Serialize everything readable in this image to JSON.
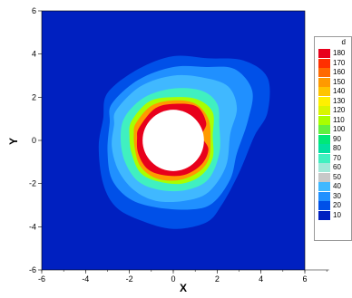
{
  "chart_data": {
    "type": "heatmap",
    "title": "",
    "xlabel": "X",
    "ylabel": "Y",
    "xlim": [
      -6,
      6
    ],
    "ylim": [
      -6,
      6
    ],
    "x_ticks": [
      "-6",
      "-4",
      "-2",
      "0",
      "2",
      "4",
      "6"
    ],
    "y_ticks": [
      "6",
      "4",
      "2",
      "0",
      "-2",
      "-4",
      "-6"
    ],
    "legend": {
      "title": "d",
      "levels": [
        {
          "label": "180",
          "color": "#e8001c"
        },
        {
          "label": "170",
          "color": "#ff3000"
        },
        {
          "label": "160",
          "color": "#ff6a00"
        },
        {
          "label": "150",
          "color": "#ff9a00"
        },
        {
          "label": "140",
          "color": "#ffc400"
        },
        {
          "label": "130",
          "color": "#fff000"
        },
        {
          "label": "120",
          "color": "#d8f500"
        },
        {
          "label": "110",
          "color": "#a8ff00"
        },
        {
          "label": "100",
          "color": "#60f040"
        },
        {
          "label": "90",
          "color": "#00e878"
        },
        {
          "label": "80",
          "color": "#00e0a0"
        },
        {
          "label": "70",
          "color": "#40f0c0"
        },
        {
          "label": "60",
          "color": "#a0e8d8"
        },
        {
          "label": "50",
          "color": "#c8c8c8"
        },
        {
          "label": "40",
          "color": "#40b8ff"
        },
        {
          "label": "30",
          "color": "#2090ff"
        },
        {
          "label": "20",
          "color": "#0050e8"
        },
        {
          "label": "10",
          "color": "#0020c0"
        }
      ]
    },
    "background_value": 10,
    "hole": {
      "center": [
        0,
        0
      ],
      "radius": 1.4
    },
    "contours": [
      {
        "value": 20,
        "color": "#0050e8",
        "points": [
          [
            -3.0,
            2.2
          ],
          [
            -1.6,
            3.3
          ],
          [
            0,
            3.9
          ],
          [
            1.6,
            3.8
          ],
          [
            3.2,
            3.7
          ],
          [
            4.3,
            2.9
          ],
          [
            4.3,
            1.3
          ],
          [
            3.7,
            0.2
          ],
          [
            3.0,
            -1.5
          ],
          [
            2.2,
            -3.0
          ],
          [
            1.5,
            -3.8
          ],
          [
            0,
            -4.1
          ],
          [
            -1.5,
            -3.7
          ],
          [
            -2.6,
            -3.1
          ],
          [
            -3.2,
            -2.0
          ],
          [
            -3.4,
            -0.3
          ],
          [
            -3.2,
            1.0
          ]
        ]
      },
      {
        "value": 30,
        "color": "#2090ff",
        "points": [
          [
            -2.8,
            1.7
          ],
          [
            -1.6,
            2.8
          ],
          [
            0,
            3.4
          ],
          [
            1.5,
            3.4
          ],
          [
            2.8,
            3.3
          ],
          [
            3.6,
            2.3
          ],
          [
            3.4,
            0.9
          ],
          [
            2.9,
            -0.6
          ],
          [
            2.6,
            -1.8
          ],
          [
            1.8,
            -2.9
          ],
          [
            0.8,
            -3.2
          ],
          [
            -0.8,
            -3.1
          ],
          [
            -2.0,
            -2.7
          ],
          [
            -2.8,
            -1.8
          ],
          [
            -3.0,
            -0.5
          ],
          [
            -2.9,
            0.8
          ]
        ]
      },
      {
        "value": 40,
        "color": "#40b8ff",
        "points": [
          [
            -2.6,
            1.4
          ],
          [
            -1.5,
            2.5
          ],
          [
            0,
            3.0
          ],
          [
            1.4,
            2.9
          ],
          [
            2.5,
            2.5
          ],
          [
            2.9,
            1.5
          ],
          [
            2.6,
            0.3
          ],
          [
            2.4,
            -1.2
          ],
          [
            1.6,
            -2.4
          ],
          [
            0.5,
            -2.8
          ],
          [
            -0.8,
            -2.8
          ],
          [
            -1.8,
            -2.3
          ],
          [
            -2.5,
            -1.4
          ],
          [
            -2.8,
            -0.3
          ],
          [
            -2.7,
            0.7
          ]
        ]
      },
      {
        "value": 70,
        "color": "#40f0c0",
        "points": [
          [
            -2.2,
            1.1
          ],
          [
            -1.3,
            2.0
          ],
          [
            0,
            2.4
          ],
          [
            1.3,
            2.3
          ],
          [
            2.0,
            1.7
          ],
          [
            2.1,
            0.7
          ],
          [
            2.1,
            -0.6
          ],
          [
            1.6,
            -1.8
          ],
          [
            0.6,
            -2.3
          ],
          [
            -0.6,
            -2.3
          ],
          [
            -1.6,
            -1.9
          ],
          [
            -2.2,
            -1.0
          ],
          [
            -2.4,
            0.1
          ]
        ]
      },
      {
        "value": 110,
        "color": "#a8ff00",
        "points": [
          [
            -1.9,
            0.9
          ],
          [
            -1.1,
            1.8
          ],
          [
            0,
            2.0
          ],
          [
            1.1,
            1.9
          ],
          [
            1.8,
            1.3
          ],
          [
            1.8,
            0.2
          ],
          [
            1.8,
            -0.8
          ],
          [
            1.3,
            -1.6
          ],
          [
            0.4,
            -2.0
          ],
          [
            -0.7,
            -1.9
          ],
          [
            -1.5,
            -1.5
          ],
          [
            -1.9,
            -0.6
          ],
          [
            -2.0,
            0.2
          ]
        ]
      },
      {
        "value": 150,
        "color": "#ff9a00",
        "points": [
          [
            -1.7,
            0.8
          ],
          [
            -1.0,
            1.6
          ],
          [
            0,
            1.85
          ],
          [
            1.0,
            1.7
          ],
          [
            1.6,
            1.0
          ],
          [
            1.7,
            0.0
          ],
          [
            1.6,
            -0.9
          ],
          [
            1.1,
            -1.5
          ],
          [
            0.2,
            -1.85
          ],
          [
            -0.8,
            -1.75
          ],
          [
            -1.5,
            -1.2
          ],
          [
            -1.75,
            -0.4
          ],
          [
            -1.8,
            0.3
          ]
        ]
      },
      {
        "value": 180,
        "color": "#e8001c",
        "points": [
          [
            -1.55,
            0.6
          ],
          [
            -0.8,
            1.5
          ],
          [
            0.2,
            1.7
          ],
          [
            1.1,
            1.55
          ],
          [
            1.5,
            0.8
          ],
          [
            1.3,
            0.2
          ],
          [
            1.6,
            -0.4
          ],
          [
            1.3,
            -1.1
          ],
          [
            0.5,
            -1.6
          ],
          [
            -0.5,
            -1.6
          ],
          [
            -1.2,
            -1.3
          ],
          [
            -1.6,
            -0.6
          ],
          [
            -1.65,
            0.1
          ]
        ]
      }
    ]
  }
}
